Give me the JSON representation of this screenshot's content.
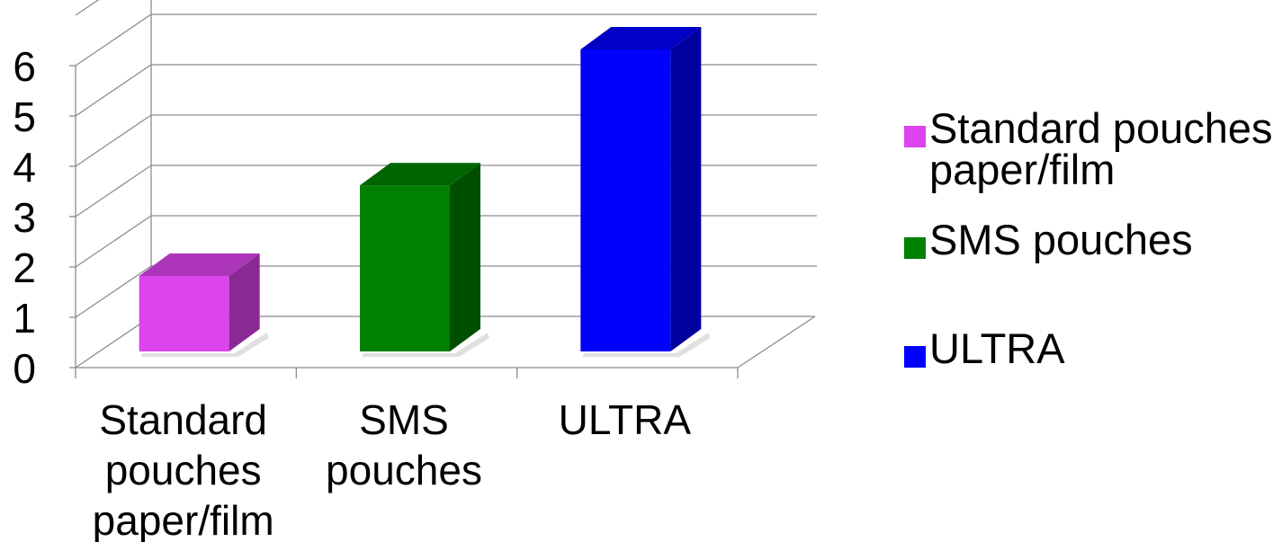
{
  "chart_data": {
    "type": "bar",
    "title": "",
    "xlabel": "",
    "ylabel": "",
    "categories": [
      "Standard pouches paper/film",
      "SMS pouches",
      "ULTRA"
    ],
    "category_label_lines": [
      [
        "Standard",
        "pouches",
        "paper/film"
      ],
      [
        "SMS",
        "pouches"
      ],
      [
        "ULTRA"
      ]
    ],
    "series": [
      {
        "name": "Standard pouches paper/film",
        "category": "Standard pouches paper/film",
        "value": 1.5,
        "color": "#dd44ee"
      },
      {
        "name": "SMS pouches",
        "category": "SMS pouches",
        "value": 3.3,
        "color": "#008000"
      },
      {
        "name": "ULTRA",
        "category": "ULTRA",
        "value": 6.0,
        "color": "#0000ff"
      }
    ],
    "ylim": [
      0,
      6
    ],
    "yticks": [
      "0",
      "1",
      "2",
      "3",
      "4",
      "5",
      "6"
    ],
    "grid": true,
    "style": "3d-column",
    "legend_position": "right"
  },
  "legend": {
    "items": [
      {
        "label": "Standard pouches paper/film",
        "lines": [
          "Standard pouches",
          "paper/film"
        ],
        "color": "#dd44ee"
      },
      {
        "label": "SMS pouches",
        "lines": [
          "SMS pouches"
        ],
        "color": "#008000"
      },
      {
        "label": "ULTRA",
        "lines": [
          "ULTRA"
        ],
        "color": "#0000ff"
      }
    ]
  }
}
